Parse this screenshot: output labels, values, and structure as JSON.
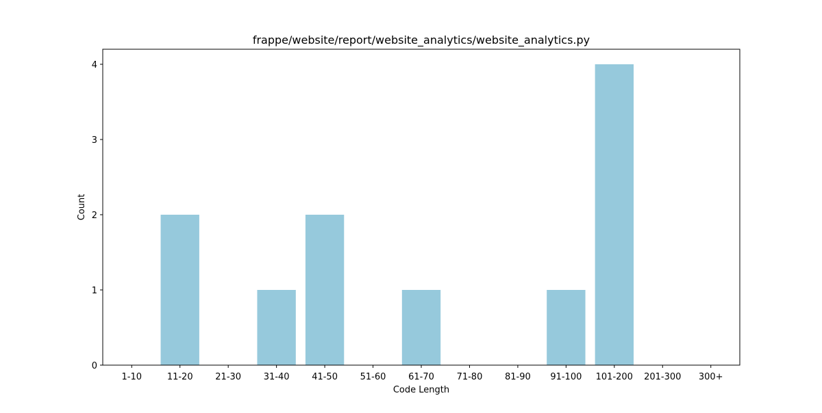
{
  "chart_data": {
    "type": "bar",
    "title": "frappe/website/report/website_analytics/website_analytics.py",
    "xlabel": "Code Length",
    "ylabel": "Count",
    "categories": [
      "1-10",
      "11-20",
      "21-30",
      "31-40",
      "41-50",
      "51-60",
      "61-70",
      "71-80",
      "81-90",
      "91-100",
      "101-200",
      "201-300",
      "300+"
    ],
    "values": [
      0,
      2,
      0,
      1,
      2,
      0,
      1,
      0,
      0,
      1,
      4,
      0,
      0
    ],
    "ylim": [
      0,
      4.2
    ],
    "yticks": [
      0,
      1,
      2,
      3,
      4
    ],
    "bar_color": "#96c9dc",
    "grid": false,
    "legend": "none"
  }
}
